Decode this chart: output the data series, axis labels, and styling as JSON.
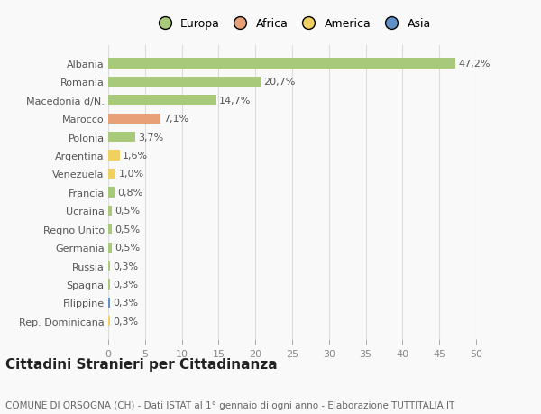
{
  "categories": [
    "Albania",
    "Romania",
    "Macedonia d/N.",
    "Marocco",
    "Polonia",
    "Argentina",
    "Venezuela",
    "Francia",
    "Ucraina",
    "Regno Unito",
    "Germania",
    "Russia",
    "Spagna",
    "Filippine",
    "Rep. Dominicana"
  ],
  "values": [
    47.2,
    20.7,
    14.7,
    7.1,
    3.7,
    1.6,
    1.0,
    0.8,
    0.5,
    0.5,
    0.5,
    0.3,
    0.3,
    0.3,
    0.3
  ],
  "labels": [
    "47,2%",
    "20,7%",
    "14,7%",
    "7,1%",
    "3,7%",
    "1,6%",
    "1,0%",
    "0,8%",
    "0,5%",
    "0,5%",
    "0,5%",
    "0,3%",
    "0,3%",
    "0,3%",
    "0,3%"
  ],
  "colors": [
    "#a8c87a",
    "#a8c87a",
    "#a8c87a",
    "#e8a078",
    "#a8c87a",
    "#f0d060",
    "#f0d060",
    "#a8c87a",
    "#a8c87a",
    "#a8c87a",
    "#a8c87a",
    "#a8c87a",
    "#a8c87a",
    "#6090c8",
    "#f0d060"
  ],
  "legend_labels": [
    "Europa",
    "Africa",
    "America",
    "Asia"
  ],
  "legend_colors": [
    "#a8c87a",
    "#e8a078",
    "#f0d060",
    "#6090c8"
  ],
  "xlim": [
    0,
    50
  ],
  "xticks": [
    0,
    5,
    10,
    15,
    20,
    25,
    30,
    35,
    40,
    45,
    50
  ],
  "title": "Cittadini Stranieri per Cittadinanza",
  "subtitle": "COMUNE DI ORSOGNA (CH) - Dati ISTAT al 1° gennaio di ogni anno - Elaborazione TUTTITALIA.IT",
  "bg_color": "#f9f9f9",
  "grid_color": "#dddddd",
  "bar_height": 0.55,
  "title_fontsize": 11,
  "subtitle_fontsize": 7.5,
  "label_fontsize": 8,
  "tick_fontsize": 8,
  "legend_fontsize": 9
}
